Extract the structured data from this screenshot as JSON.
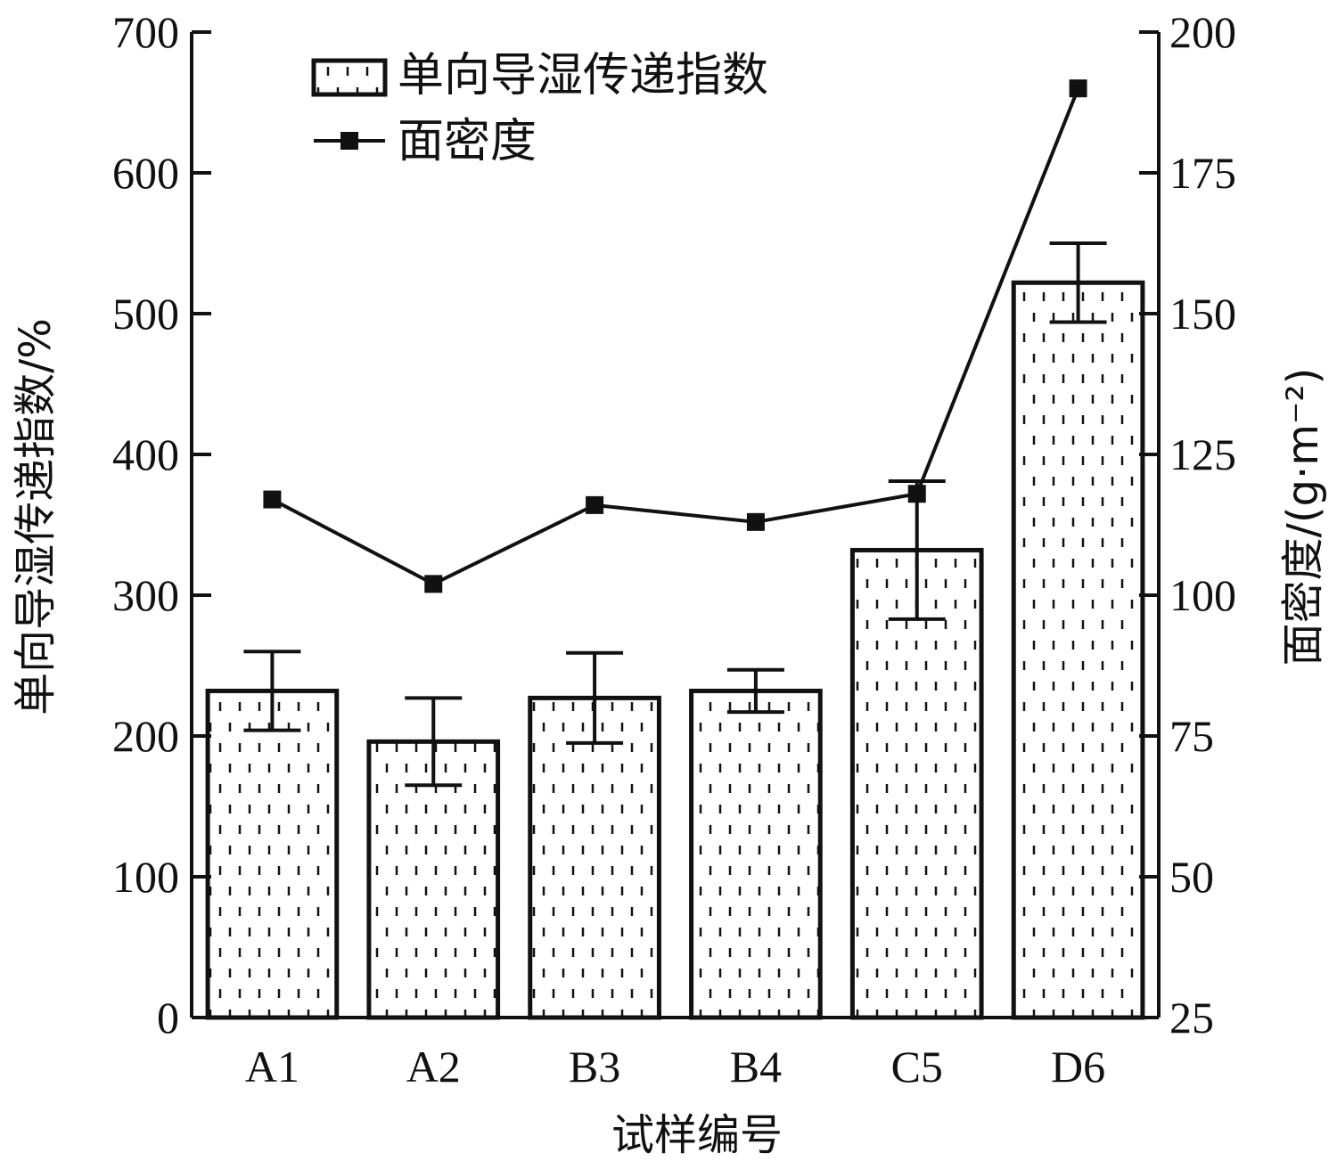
{
  "chart_data": {
    "type": "bar",
    "categories": [
      "A1",
      "A2",
      "B3",
      "B4",
      "C5",
      "D6"
    ],
    "xlabel": "试样编号",
    "ylabel": "单向导湿传递指数/%",
    "y2label": "面密度/(g·m⁻²)",
    "ylim": [
      0,
      700
    ],
    "y2lim": [
      25,
      200
    ],
    "yticks": [
      0,
      100,
      200,
      300,
      400,
      500,
      600,
      700
    ],
    "y2ticks": [
      25,
      50,
      75,
      100,
      125,
      150,
      175,
      200
    ],
    "legend_position": "top-left",
    "grid": false,
    "series": [
      {
        "name": "单向导湿传递指数",
        "type": "bar",
        "axis": "left",
        "values": [
          232,
          196,
          227,
          232,
          332,
          522
        ],
        "error": [
          28,
          31,
          32,
          15,
          49,
          28
        ]
      },
      {
        "name": "面密度",
        "type": "line",
        "axis": "right",
        "values": [
          117,
          102,
          116,
          113,
          118,
          190
        ]
      }
    ]
  }
}
